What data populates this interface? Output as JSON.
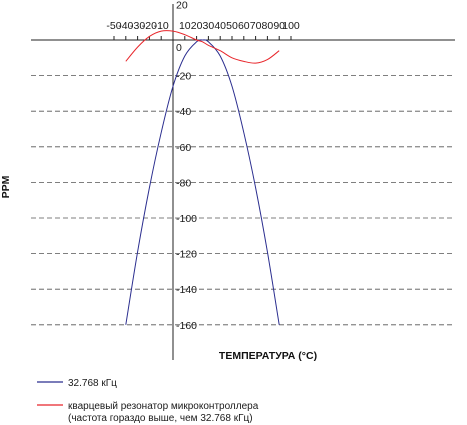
{
  "chart_data": {
    "type": "line",
    "ylabel": "PPM",
    "xlabel": "ТЕМПЕРАТУРА (°C)",
    "xlim": [
      -50,
      100
    ],
    "ylim": [
      -170,
      20
    ],
    "x_ticks": [
      -50,
      -40,
      -30,
      -20,
      -10,
      0,
      10,
      20,
      30,
      40,
      50,
      60,
      70,
      80,
      90,
      100
    ],
    "y_ticks": [
      20,
      0,
      -20,
      -40,
      -60,
      -80,
      -100,
      -120,
      -140,
      -160
    ],
    "grid": "horizontal dashed",
    "legend_position": "bottom-left",
    "series": [
      {
        "name": "32.768 кГц",
        "color": "#2b2e8f",
        "x": [
          -40,
          -30,
          -20,
          -10,
          0,
          10,
          20,
          25,
          30,
          40,
          50,
          60,
          70,
          80,
          90
        ],
        "y": [
          -160,
          -119,
          -83,
          -52,
          -26,
          -9,
          -1,
          0,
          -1,
          -9,
          -26,
          -52,
          -83,
          -119,
          -160
        ]
      },
      {
        "name": "кварцевый резонатор микроконтроллера (частота гораздо выше, чем 32.768 кГц)",
        "color": "#e8252a",
        "x": [
          -40,
          -30,
          -20,
          -10,
          0,
          10,
          20,
          25,
          30,
          40,
          50,
          60,
          70,
          80,
          90
        ],
        "y": [
          -12,
          -4,
          2,
          5,
          5,
          3,
          0,
          -1,
          -3,
          -6,
          -10,
          -12,
          -13,
          -11,
          -6
        ]
      }
    ]
  },
  "legend": {
    "item1": "32.768 кГц",
    "item2_line1": "кварцевый резонатор микроконтроллера",
    "item2_line2": "(частота гораздо выше, чем 32.768 кГц)"
  }
}
